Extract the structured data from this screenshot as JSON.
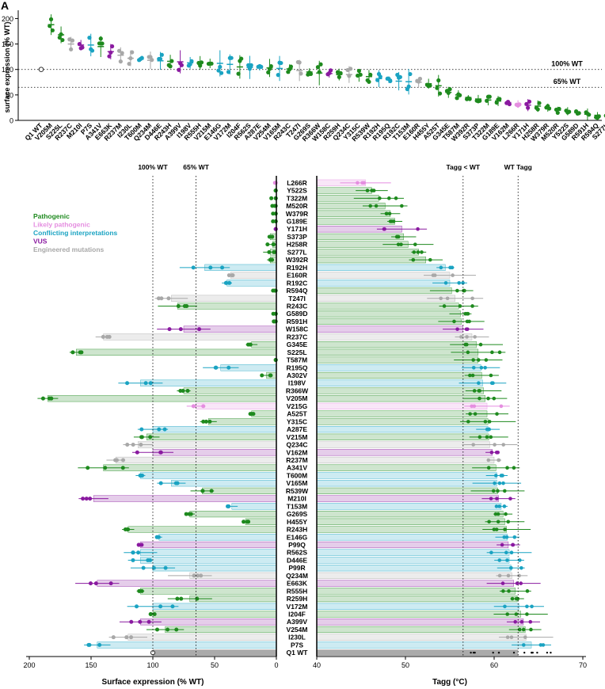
{
  "panel_letter": "A",
  "colors": {
    "Pathogenic": "#1e8a1e",
    "Likely pathogenic": "#e58ee0",
    "Conflicting interpretations": "#1aa3c2",
    "VUS": "#8a1aa0",
    "Engineered mutations": "#a8a8a8",
    "WT": "#555555"
  },
  "chart_data": [
    {
      "type": "scatter",
      "title": "",
      "xlabel": "",
      "ylabel": "surface expression (% WT)",
      "ylim": [
        0,
        210
      ],
      "yticks": [
        "0",
        "50",
        "100",
        "150",
        "200"
      ],
      "reference_lines": [
        {
          "value": 100,
          "label": "100% WT"
        },
        {
          "value": 65,
          "label": "65% WT"
        }
      ],
      "categories": [
        "Q1 WT",
        "V205M",
        "S225L",
        "R237C",
        "M210I",
        "P7S",
        "A341V",
        "E663K",
        "R237M",
        "I230L",
        "T600M",
        "Q234M",
        "D446E",
        "R243H",
        "A399V",
        "I198V",
        "R555H",
        "V215M",
        "E146G",
        "V172M",
        "I204F",
        "R562S",
        "A287E",
        "V254M",
        "V165M",
        "R243C",
        "T247I",
        "G269S",
        "R366W",
        "W158C",
        "R259H",
        "Q234C",
        "Y315C",
        "R539W",
        "R192H",
        "R195Q",
        "R192C",
        "T153M",
        "E160R",
        "H455Y",
        "A525T",
        "G345E",
        "T587M",
        "W392R",
        "S373P",
        "T322M",
        "G189E",
        "V162M",
        "L266R",
        "Y171H",
        "H258R",
        "W379R",
        "M520R",
        "Y522S",
        "G589D",
        "R591H",
        "R594Q",
        "S277L"
      ],
      "values": [
        100,
        188,
        168,
        150,
        148,
        148,
        145,
        135,
        128,
        122,
        120,
        118,
        117,
        116,
        115,
        113,
        113,
        112,
        112,
        110,
        105,
        104,
        103,
        103,
        102,
        101,
        98,
        95,
        93,
        92,
        90,
        90,
        88,
        86,
        82,
        80,
        77,
        76,
        75,
        72,
        68,
        55,
        50,
        45,
        42,
        40,
        38,
        35,
        32,
        30,
        28,
        25,
        20,
        18,
        15,
        12,
        10,
        8
      ],
      "classes": [
        "WT",
        "Pathogenic",
        "Pathogenic",
        "Engineered mutations",
        "VUS",
        "Conflicting interpretations",
        "Pathogenic",
        "VUS",
        "Engineered mutations",
        "Engineered mutations",
        "Conflicting interpretations",
        "Engineered mutations",
        "Conflicting interpretations",
        "Pathogenic",
        "VUS",
        "Conflicting interpretations",
        "Pathogenic",
        "Pathogenic",
        "Conflicting interpretations",
        "Conflicting interpretations",
        "Pathogenic",
        "Conflicting interpretations",
        "Conflicting interpretations",
        "Pathogenic",
        "Conflicting interpretations",
        "Pathogenic",
        "Engineered mutations",
        "Pathogenic",
        "Pathogenic",
        "VUS",
        "Pathogenic",
        "Engineered mutations",
        "Pathogenic",
        "Pathogenic",
        "Conflicting interpretations",
        "Conflicting interpretations",
        "Conflicting interpretations",
        "Conflicting interpretations",
        "Engineered mutations",
        "Pathogenic",
        "Pathogenic",
        "Pathogenic",
        "Pathogenic",
        "Pathogenic",
        "Pathogenic",
        "Pathogenic",
        "Pathogenic",
        "VUS",
        "Likely pathogenic",
        "VUS",
        "Pathogenic",
        "Pathogenic",
        "Pathogenic",
        "Pathogenic",
        "Pathogenic",
        "Pathogenic",
        "Pathogenic",
        "Pathogenic"
      ]
    },
    {
      "type": "bar",
      "orientation": "horizontal",
      "title": "",
      "xlabel": "Surface expression (% WT)",
      "ylabel": "",
      "xlim": [
        200,
        0
      ],
      "xticks": [
        "200",
        "150",
        "100",
        "50",
        "0"
      ],
      "reference_lines": [
        {
          "value": 100,
          "label": "100% WT"
        },
        {
          "value": 65,
          "label": "65% WT"
        }
      ],
      "categories": [
        "L266R",
        "Y522S",
        "T322M",
        "M520R",
        "W379R",
        "G189E",
        "Y171H",
        "S373P",
        "H258R",
        "S277L",
        "W392R",
        "R192H",
        "E160R",
        "R192C",
        "R594Q",
        "T247I",
        "R243C",
        "G589D",
        "R591H",
        "W158C",
        "R237C",
        "G345E",
        "S225L",
        "T587M",
        "R195Q",
        "A302V",
        "I198V",
        "R366W",
        "V205M",
        "V215G",
        "A525T",
        "Y315C",
        "A287E",
        "V215M",
        "Q234C",
        "V162M",
        "R237M",
        "A341V",
        "T600M",
        "V165M",
        "R539W",
        "M210I",
        "T153M",
        "G269S",
        "H455Y",
        "R243H",
        "E146G",
        "P99Q",
        "R562S",
        "D446E",
        "P99R",
        "Q234M",
        "E663K",
        "R555H",
        "R259H",
        "V172M",
        "I204F",
        "A399V",
        "V254M",
        "I230L",
        "P7S",
        "Q1 WT"
      ],
      "values": [
        0,
        0,
        0,
        0,
        0,
        0,
        0,
        5,
        3,
        5,
        5,
        58,
        37,
        40,
        0,
        85,
        80,
        0,
        0,
        75,
        140,
        20,
        162,
        0,
        45,
        8,
        110,
        75,
        185,
        65,
        20,
        55,
        100,
        105,
        112,
        100,
        130,
        140,
        110,
        85,
        60,
        148,
        36,
        70,
        25,
        120,
        95,
        110,
        110,
        110,
        100,
        70,
        145,
        110,
        70,
        100,
        100,
        110,
        90,
        120,
        145,
        100
      ],
      "classes": [
        "Likely pathogenic",
        "Pathogenic",
        "Pathogenic",
        "Pathogenic",
        "Pathogenic",
        "Pathogenic",
        "VUS",
        "Pathogenic",
        "Pathogenic",
        "Pathogenic",
        "Pathogenic",
        "Conflicting interpretations",
        "Engineered mutations",
        "Conflicting interpretations",
        "Pathogenic",
        "Engineered mutations",
        "Pathogenic",
        "Pathogenic",
        "Pathogenic",
        "VUS",
        "Engineered mutations",
        "Pathogenic",
        "Pathogenic",
        "Pathogenic",
        "Conflicting interpretations",
        "Pathogenic",
        "Conflicting interpretations",
        "Pathogenic",
        "Pathogenic",
        "Likely pathogenic",
        "Pathogenic",
        "Pathogenic",
        "Conflicting interpretations",
        "Pathogenic",
        "Engineered mutations",
        "VUS",
        "Engineered mutations",
        "Pathogenic",
        "Conflicting interpretations",
        "Conflicting interpretations",
        "Pathogenic",
        "VUS",
        "Conflicting interpretations",
        "Pathogenic",
        "Pathogenic",
        "Pathogenic",
        "Conflicting interpretations",
        "VUS",
        "Conflicting interpretations",
        "Conflicting interpretations",
        "Conflicting interpretations",
        "Engineered mutations",
        "VUS",
        "Pathogenic",
        "Pathogenic",
        "Conflicting interpretations",
        "Pathogenic",
        "VUS",
        "Pathogenic",
        "Engineered mutations",
        "Conflicting interpretations",
        "WT"
      ],
      "legend": [
        "Pathogenic",
        "Likely pathogenic",
        "Conflicting interpretations",
        "VUS",
        "Engineered mutations"
      ],
      "legend_placement": "top-left"
    },
    {
      "type": "bar",
      "orientation": "horizontal",
      "title": "",
      "xlabel": "Tagg (°C)",
      "ylabel": "",
      "xlim": [
        40,
        70
      ],
      "xticks": [
        "40",
        "50",
        "60",
        "70"
      ],
      "reference_lines": [
        {
          "value": 56.5,
          "label": "Tagg < WT"
        },
        {
          "value": 62.7,
          "label": "WT Tagg"
        }
      ],
      "categories": [
        "L266R",
        "Y522S",
        "T322M",
        "M520R",
        "W379R",
        "G189E",
        "Y171H",
        "S373P",
        "H258R",
        "S277L",
        "W392R",
        "R192H",
        "E160R",
        "R192C",
        "R594Q",
        "T247I",
        "R243C",
        "G589D",
        "R591H",
        "W158C",
        "R237C",
        "G345E",
        "S225L",
        "T587M",
        "R195Q",
        "A302V",
        "I198V",
        "R366W",
        "V205M",
        "V215G",
        "A525T",
        "Y315C",
        "A287E",
        "V215M",
        "Q234C",
        "V162M",
        "R237M",
        "A341V",
        "T600M",
        "V165M",
        "R539W",
        "M210I",
        "T153M",
        "G269S",
        "H455Y",
        "R243H",
        "E146G",
        "P99Q",
        "R562S",
        "D446E",
        "P99R",
        "Q234M",
        "E663K",
        "R555H",
        "R259H",
        "V172M",
        "I204F",
        "A399V",
        "V254M",
        "I230L",
        "P7S",
        "Q1 WT"
      ],
      "values": [
        45.5,
        46.2,
        47.0,
        47.7,
        48.3,
        48.8,
        49.6,
        49.8,
        50.3,
        51.5,
        52.3,
        54.5,
        55.0,
        55.0,
        55.2,
        55.6,
        56.0,
        56.2,
        56.3,
        56.5,
        57.5,
        58.0,
        58.2,
        58.2,
        58.5,
        58.6,
        58.7,
        58.8,
        59.0,
        59.2,
        59.2,
        59.3,
        59.3,
        59.4,
        59.5,
        59.8,
        60.0,
        60.2,
        60.3,
        60.3,
        60.4,
        60.5,
        60.8,
        61.0,
        61.2,
        61.4,
        61.5,
        61.6,
        61.7,
        61.7,
        61.9,
        62.0,
        62.2,
        62.4,
        62.6,
        62.8,
        63.0,
        63.3,
        63.5,
        63.6,
        64.2,
        62.7
      ],
      "classes": [
        "Likely pathogenic",
        "Pathogenic",
        "Pathogenic",
        "Pathogenic",
        "Pathogenic",
        "Pathogenic",
        "VUS",
        "Pathogenic",
        "Pathogenic",
        "Pathogenic",
        "Pathogenic",
        "Conflicting interpretations",
        "Engineered mutations",
        "Conflicting interpretations",
        "Pathogenic",
        "Engineered mutations",
        "Pathogenic",
        "Pathogenic",
        "Pathogenic",
        "VUS",
        "Engineered mutations",
        "Pathogenic",
        "Pathogenic",
        "Pathogenic",
        "Conflicting interpretations",
        "Pathogenic",
        "Conflicting interpretations",
        "Pathogenic",
        "Pathogenic",
        "Likely pathogenic",
        "Pathogenic",
        "Pathogenic",
        "Conflicting interpretations",
        "Pathogenic",
        "Engineered mutations",
        "VUS",
        "Engineered mutations",
        "Pathogenic",
        "Conflicting interpretations",
        "Conflicting interpretations",
        "Pathogenic",
        "VUS",
        "Conflicting interpretations",
        "Pathogenic",
        "Pathogenic",
        "Pathogenic",
        "Conflicting interpretations",
        "VUS",
        "Conflicting interpretations",
        "Conflicting interpretations",
        "Conflicting interpretations",
        "Engineered mutations",
        "VUS",
        "Pathogenic",
        "Pathogenic",
        "Conflicting interpretations",
        "Pathogenic",
        "VUS",
        "Pathogenic",
        "Engineered mutations",
        "Conflicting interpretations",
        "WT"
      ]
    }
  ]
}
